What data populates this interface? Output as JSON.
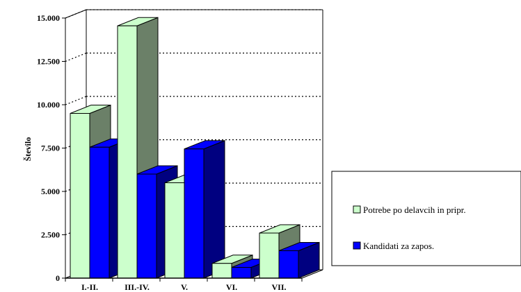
{
  "chart_data": {
    "type": "bar",
    "categories": [
      "I.-II.",
      "III.-IV.",
      "V.",
      "VI.",
      "VII."
    ],
    "series": [
      {
        "name": "Potrebe po delavcih in pripr.",
        "values": [
          9500,
          14550,
          5500,
          850,
          2600
        ],
        "color": "#ccffcc",
        "side_color": "#6b8068"
      },
      {
        "name": "Kandidati za zapos.",
        "values": [
          7550,
          6000,
          7450,
          620,
          1580
        ],
        "color": "#0000ff",
        "side_color": "#000080"
      }
    ],
    "yticks": [
      "0",
      "2.500",
      "5.000",
      "7.500",
      "10.000",
      "12.500",
      "15.000"
    ],
    "ylim": [
      0,
      15000
    ],
    "ylabel": "Število",
    "xlabel": "",
    "grid": "dotted horizontal",
    "legend": "right"
  }
}
